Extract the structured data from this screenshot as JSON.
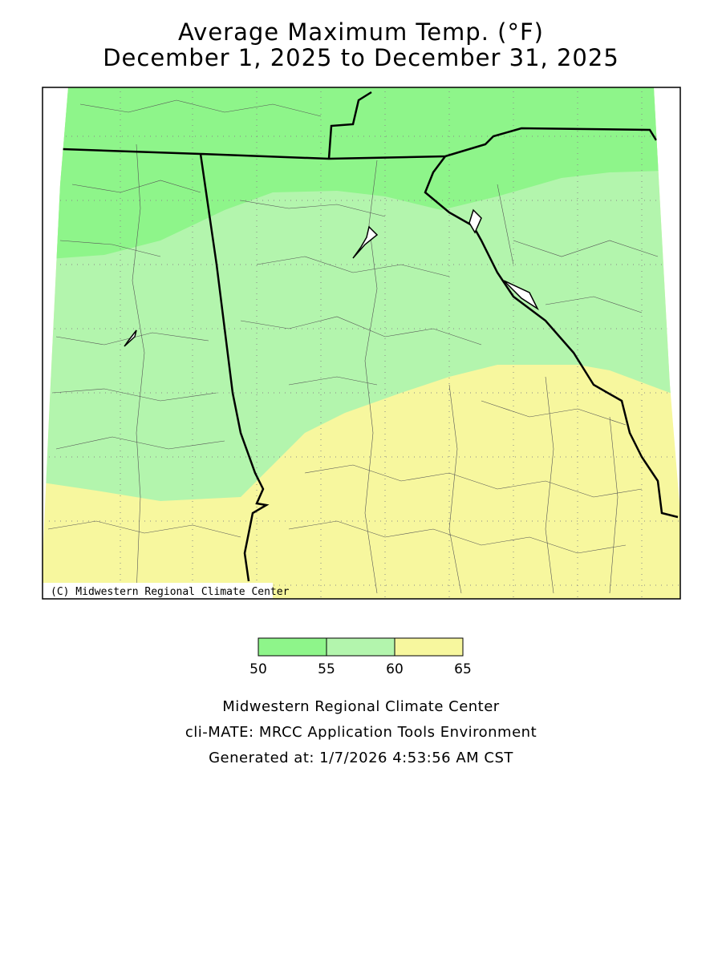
{
  "title": {
    "line1": "Average Maximum Temp. (°F)",
    "line2": "December 1, 2025 to December 31, 2025"
  },
  "map": {
    "credit": "(C) Midwestern Regional Climate Center"
  },
  "legend": {
    "ticks": [
      50,
      55,
      60,
      65
    ],
    "colors": [
      "#8ef58a",
      "#b3f5ad",
      "#f7f79e"
    ]
  },
  "footer": {
    "lines": [
      "Midwestern Regional Climate Center",
      "cli-MATE: MRCC Application Tools Environment",
      "Generated at: 1/7/2026 4:53:56 AM CST"
    ]
  }
}
